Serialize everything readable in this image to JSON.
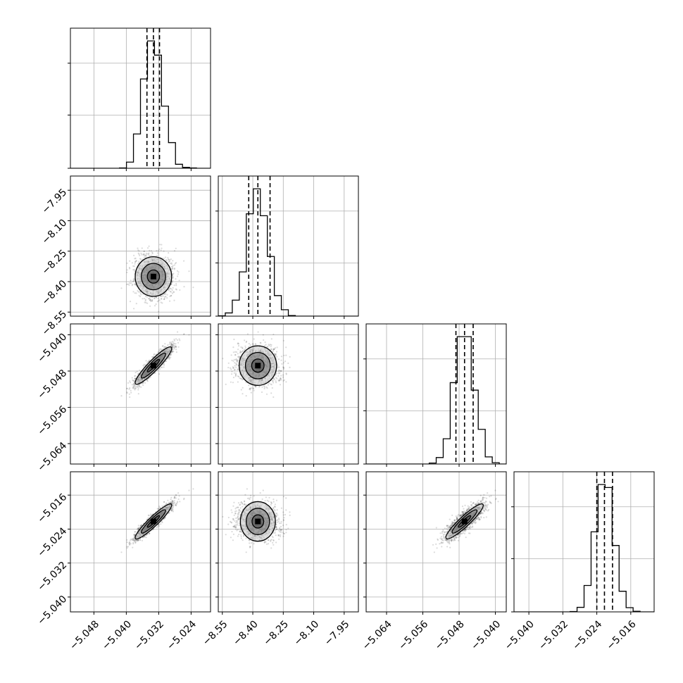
{
  "chart_data": {
    "type": "scatter",
    "subtype": "corner-plot",
    "title": "",
    "grid": true,
    "colors": {
      "axes": "#000000",
      "grid": "#b0b0b0",
      "points": "#000000",
      "quantile": "#000000"
    },
    "n_params": 4,
    "params": [
      {
        "index": 0,
        "range": [
          -5.0538,
          -5.0192
        ],
        "ticks": [
          -5.048,
          -5.04,
          -5.032,
          -5.024
        ],
        "tick_labels": [
          "−5.048",
          "−5.040",
          "−5.032",
          "−5.024"
        ],
        "mean": -5.0333,
        "sd": 0.0024,
        "quantiles": [
          -5.0349,
          -5.0333,
          -5.0318
        ]
      },
      {
        "index": 1,
        "range": [
          -8.57,
          -7.88
        ],
        "ticks": [
          -8.55,
          -8.4,
          -8.25,
          -8.1,
          -7.95
        ],
        "tick_labels": [
          "−8.55",
          "−8.40",
          "−8.25",
          "−8.10",
          "−7.95"
        ],
        "mean": -8.375,
        "sd": 0.052,
        "quantiles": [
          -8.42,
          -8.375,
          -8.315
        ]
      },
      {
        "index": 2,
        "range": [
          -5.0685,
          -5.0376
        ],
        "ticks": [
          -5.064,
          -5.056,
          -5.048,
          -5.04
        ],
        "tick_labels": [
          "−5.064",
          "−5.056",
          "−5.048",
          "−5.040"
        ],
        "mean": -5.0468,
        "sd": 0.0022,
        "quantiles": [
          -5.0487,
          -5.0468,
          -5.0449
        ]
      },
      {
        "index": 3,
        "range": [
          -5.0435,
          -5.0105
        ],
        "ticks": [
          -5.04,
          -5.032,
          -5.024,
          -5.016
        ],
        "tick_labels": [
          "−5.040",
          "−5.032",
          "−5.024",
          "−5.016"
        ],
        "mean": -5.0222,
        "sd": 0.0022,
        "quantiles": [
          -5.024,
          -5.0222,
          -5.0203
        ]
      }
    ],
    "correlations": [
      [
        0,
        1,
        0.0
      ],
      [
        0,
        2,
        0.92
      ],
      [
        0,
        3,
        0.93
      ],
      [
        1,
        2,
        0.0
      ],
      [
        1,
        3,
        0.0
      ],
      [
        2,
        3,
        0.92
      ]
    ],
    "histogram_bins": 20,
    "scatter_points_per_panel": 1500,
    "contour_levels_sigma": [
      0.5,
      1.0,
      1.5
    ]
  }
}
